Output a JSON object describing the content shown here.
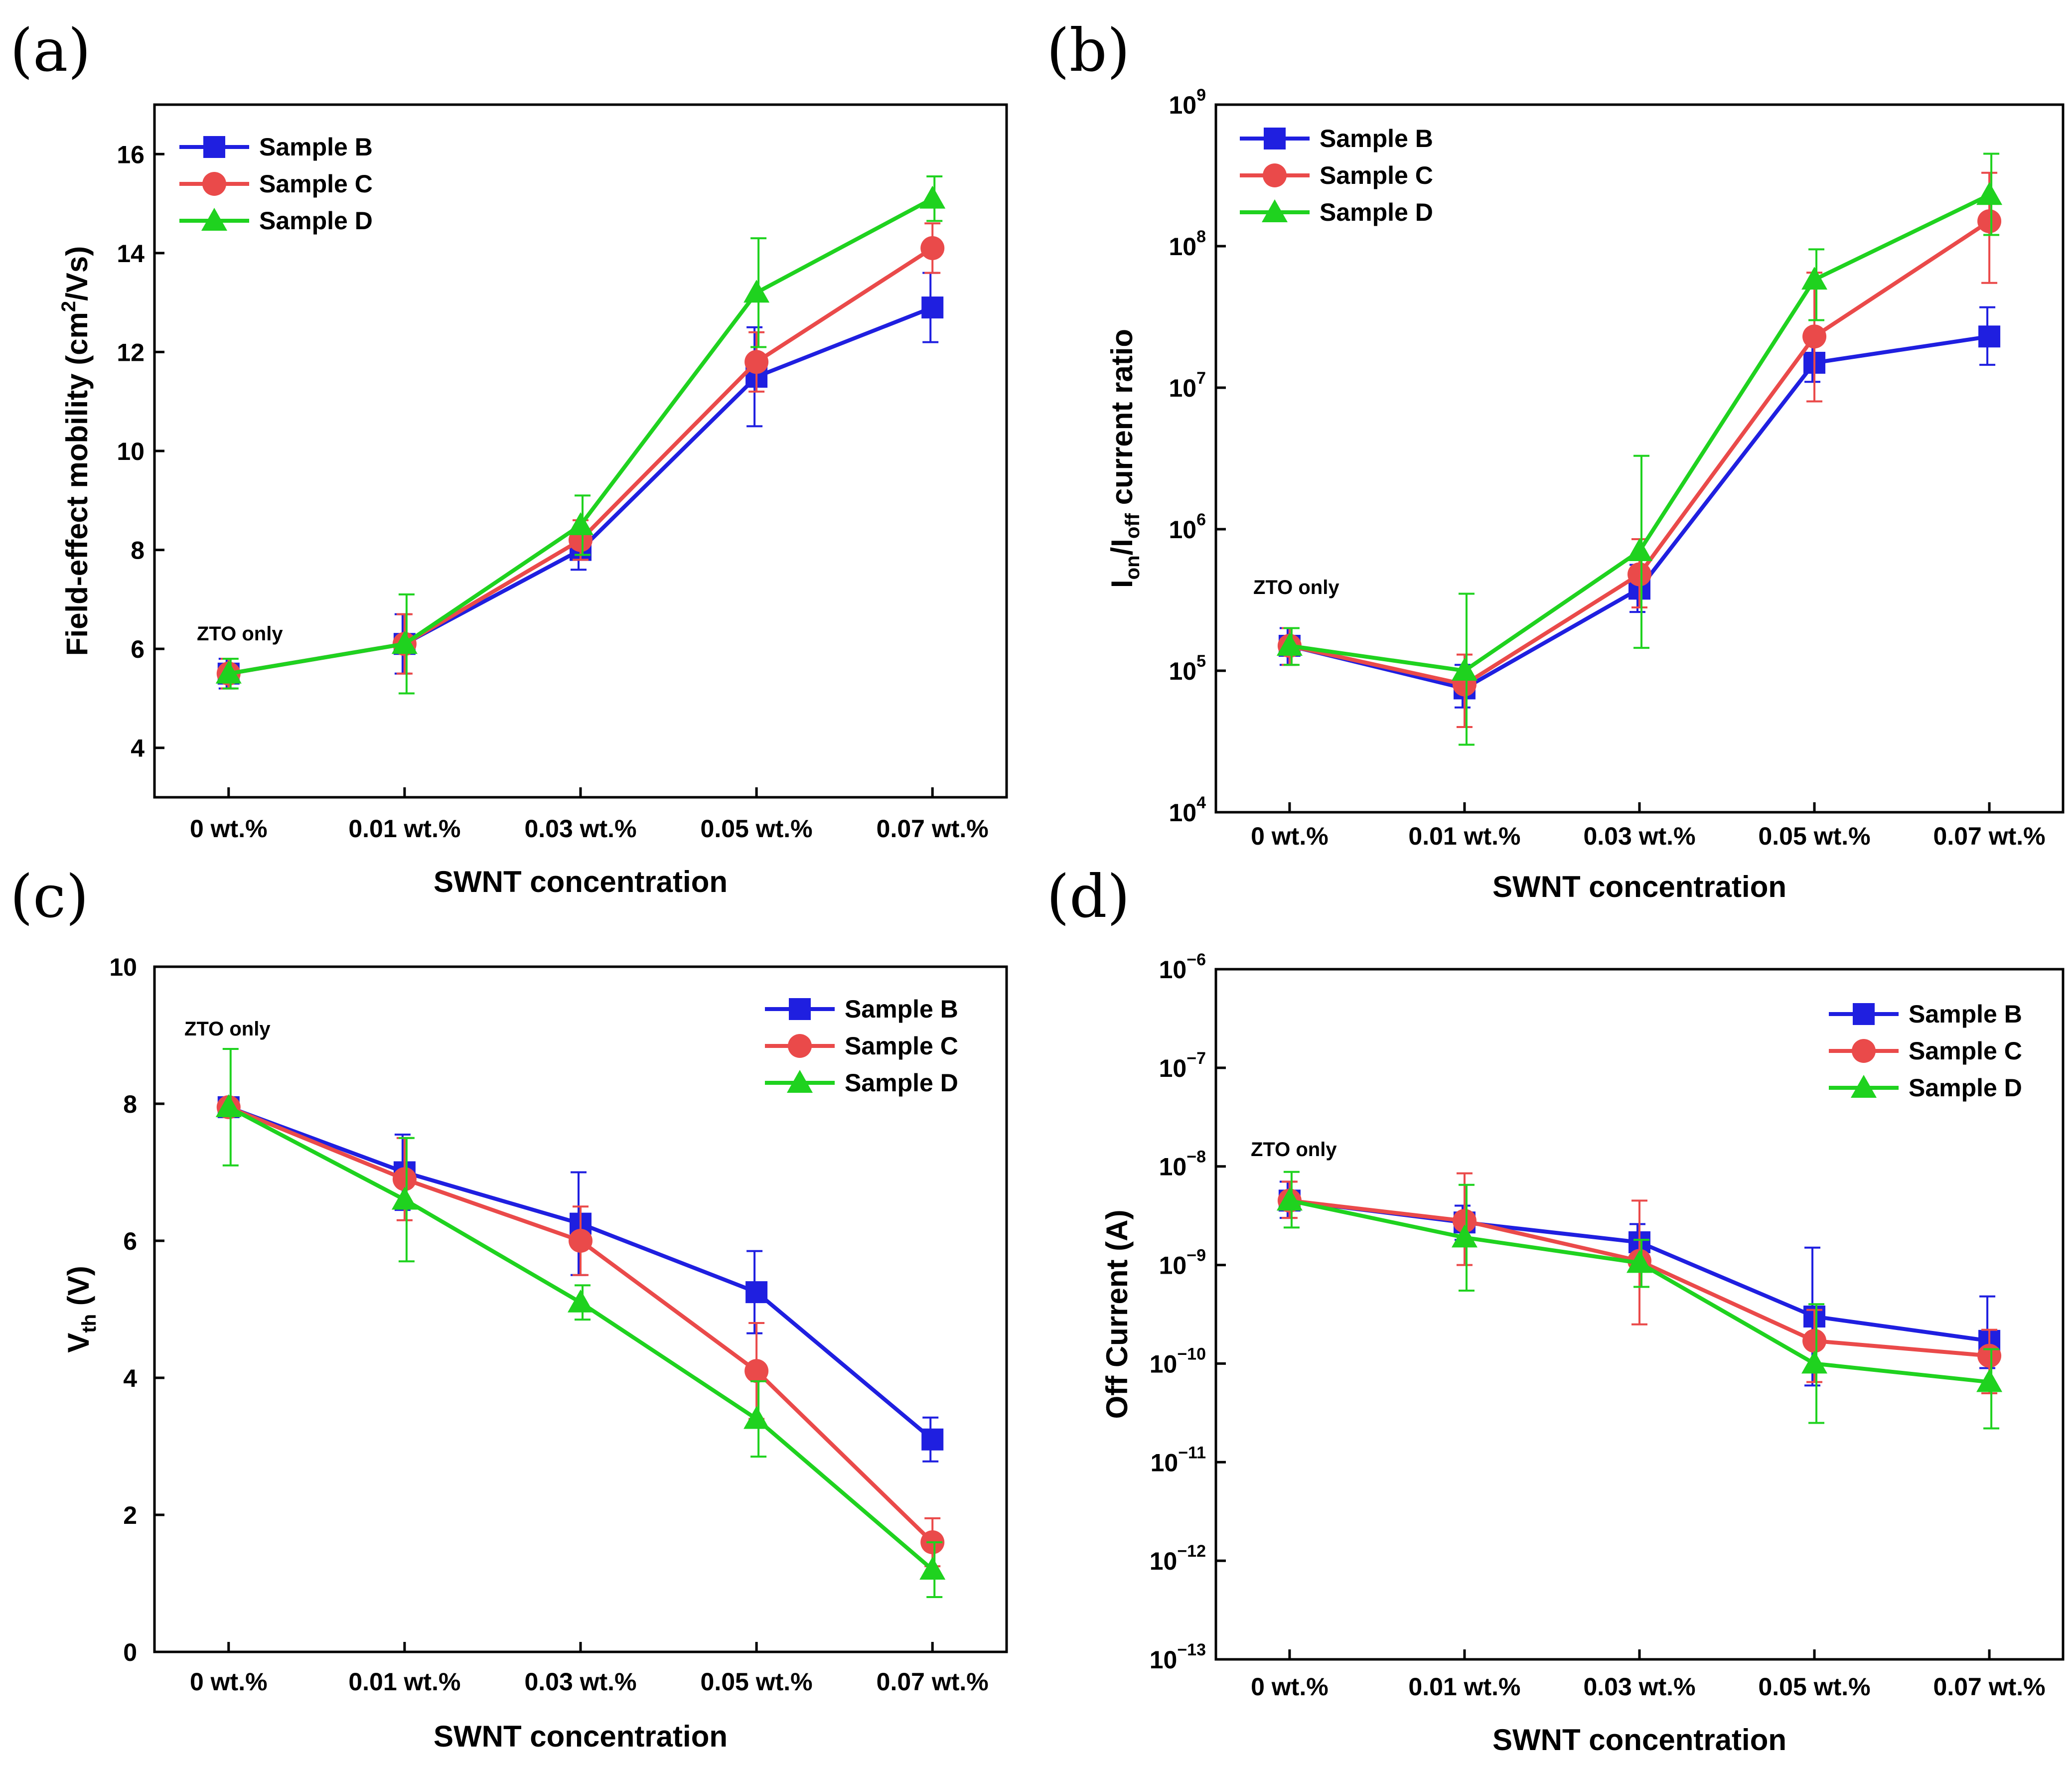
{
  "colors": {
    "Sample B": "#1f1fe0",
    "Sample C": "#ea4a4a",
    "Sample D": "#1fd21f"
  },
  "chart_data": [
    {
      "panel": "(a)",
      "type": "line",
      "xlabel": "SWNT concentration",
      "ylabel": "Field-effect mobility (cm²/Vs)",
      "ylabel_parts": {
        "base": "Field-effect mobility (cm",
        "sup": "2",
        "tail": "/Vs)"
      },
      "categories": [
        "0 wt.%",
        "0.01 wt.%",
        "0.03 wt.%",
        "0.05 wt.%",
        "0.07 wt.%"
      ],
      "yscale": "linear",
      "ylim": [
        3,
        17
      ],
      "yticks": [
        "4",
        "6",
        "8",
        "10",
        "12",
        "14",
        "16"
      ],
      "legend": {
        "location": "top-left"
      },
      "annotation": "ZTO only",
      "series": [
        {
          "name": "Sample B",
          "marker": "square",
          "values": [
            5.5,
            6.1,
            8.0,
            11.5,
            12.9
          ],
          "err": [
            0.3,
            0.6,
            0.4,
            1.0,
            0.7
          ]
        },
        {
          "name": "Sample C",
          "marker": "circle",
          "values": [
            5.5,
            6.1,
            8.2,
            11.8,
            14.1
          ],
          "err": [
            0.3,
            0.6,
            0.4,
            0.6,
            0.5
          ]
        },
        {
          "name": "Sample D",
          "marker": "triangle",
          "values": [
            5.5,
            6.1,
            8.5,
            13.2,
            15.1
          ],
          "err": [
            0.3,
            1.0,
            0.6,
            1.1,
            0.45
          ]
        }
      ]
    },
    {
      "panel": "(b)",
      "type": "line",
      "xlabel": "SWNT concentration",
      "ylabel": "Ion/Ioff current ratio",
      "ylabel_parts": {
        "I": "I",
        "on": "on",
        "slash": "/I",
        "off": "off",
        "tail": " current ratio"
      },
      "categories": [
        "0 wt.%",
        "0.01 wt.%",
        "0.03 wt.%",
        "0.05 wt.%",
        "0.07 wt.%"
      ],
      "yscale": "log",
      "ylim_exp": [
        4,
        9
      ],
      "ytick_exponents": [
        "4",
        "5",
        "6",
        "7",
        "8",
        "9"
      ],
      "legend": {
        "location": "top-left"
      },
      "annotation": "ZTO only",
      "series": [
        {
          "name": "Sample B",
          "marker": "square",
          "values": [
            150000,
            75000,
            380000,
            15000000,
            23000000
          ],
          "err_low": [
            110000,
            55000,
            260000,
            11000000,
            14500000
          ],
          "err_high": [
            200000,
            110000,
            560000,
            22000000,
            37000000
          ]
        },
        {
          "name": "Sample C",
          "marker": "circle",
          "values": [
            150000,
            80000,
            480000,
            23000000,
            150000000
          ],
          "err_low": [
            110000,
            40000,
            280000,
            8000000,
            55000000
          ],
          "err_high": [
            200000,
            130000,
            850000,
            65000000,
            330000000
          ]
        },
        {
          "name": "Sample D",
          "marker": "triangle",
          "values": [
            150000,
            100000,
            700000,
            58000000,
            230000000
          ],
          "err_low": [
            110000,
            30000,
            145000,
            30000000,
            120000000
          ],
          "err_high": [
            200000,
            350000,
            3300000,
            95000000,
            450000000
          ]
        }
      ]
    },
    {
      "panel": "(c)",
      "type": "line",
      "xlabel": "SWNT concentration",
      "ylabel": "Vth (V)",
      "ylabel_parts": {
        "V": "V",
        "th": "th",
        "tail": " (V)"
      },
      "categories": [
        "0 wt.%",
        "0.01 wt.%",
        "0.03 wt.%",
        "0.05 wt.%",
        "0.07 wt.%"
      ],
      "yscale": "linear",
      "ylim": [
        0,
        10
      ],
      "yticks": [
        "0",
        "2",
        "4",
        "6",
        "8",
        "10"
      ],
      "legend": {
        "location": "top-right"
      },
      "annotation": "ZTO only",
      "series": [
        {
          "name": "Sample B",
          "marker": "square",
          "values": [
            7.95,
            7.0,
            6.25,
            5.25,
            3.1
          ],
          "err": [
            0.1,
            0.55,
            0.75,
            0.6,
            0.32
          ]
        },
        {
          "name": "Sample C",
          "marker": "circle",
          "values": [
            7.95,
            6.9,
            6.0,
            4.1,
            1.6
          ],
          "err": [
            0.1,
            0.6,
            0.5,
            0.7,
            0.35
          ]
        },
        {
          "name": "Sample D",
          "marker": "triangle",
          "values": [
            7.95,
            6.6,
            5.1,
            3.4,
            1.2
          ],
          "err": [
            0.85,
            0.9,
            0.25,
            0.55,
            0.4
          ]
        }
      ]
    },
    {
      "panel": "(d)",
      "type": "line",
      "xlabel": "SWNT concentration",
      "ylabel": "Off Current (A)",
      "categories": [
        "0 wt.%",
        "0.01 wt.%",
        "0.03 wt.%",
        "0.05 wt.%",
        "0.07 wt.%"
      ],
      "yscale": "log",
      "ylim_exp": [
        -13,
        -6
      ],
      "ytick_exponents": [
        "−13",
        "−12",
        "−11",
        "−10",
        "−9",
        "−8",
        "−7",
        "−6"
      ],
      "legend": {
        "location": "top-right"
      },
      "annotation": "ZTO only",
      "series": [
        {
          "name": "Sample B",
          "marker": "square",
          "values": [
            4.5e-09,
            2.7e-09,
            1.7e-09,
            3e-10,
            1.7e-10
          ],
          "err_low": [
            3e-09,
            1.8e-09,
            1e-09,
            6e-11,
            9e-11
          ],
          "err_high": [
            7e-09,
            4e-09,
            2.6e-09,
            1.5e-09,
            4.8e-10
          ]
        },
        {
          "name": "Sample C",
          "marker": "circle",
          "values": [
            4.5e-09,
            2.8e-09,
            1.1e-09,
            1.7e-10,
            1.2e-10
          ],
          "err_low": [
            3e-09,
            1e-09,
            2.5e-10,
            6.5e-11,
            5e-11
          ],
          "err_high": [
            7e-09,
            8.5e-09,
            4.5e-09,
            3.5e-10,
            2.2e-10
          ]
        },
        {
          "name": "Sample D",
          "marker": "triangle",
          "values": [
            4.5e-09,
            1.9e-09,
            1.05e-09,
            1e-10,
            6.5e-11
          ],
          "err_low": [
            2.4e-09,
            5.5e-10,
            6e-10,
            2.5e-11,
            2.2e-11
          ],
          "err_high": [
            8.8e-09,
            6.5e-09,
            1.8e-09,
            4e-10,
            1.4e-10
          ]
        }
      ]
    }
  ]
}
